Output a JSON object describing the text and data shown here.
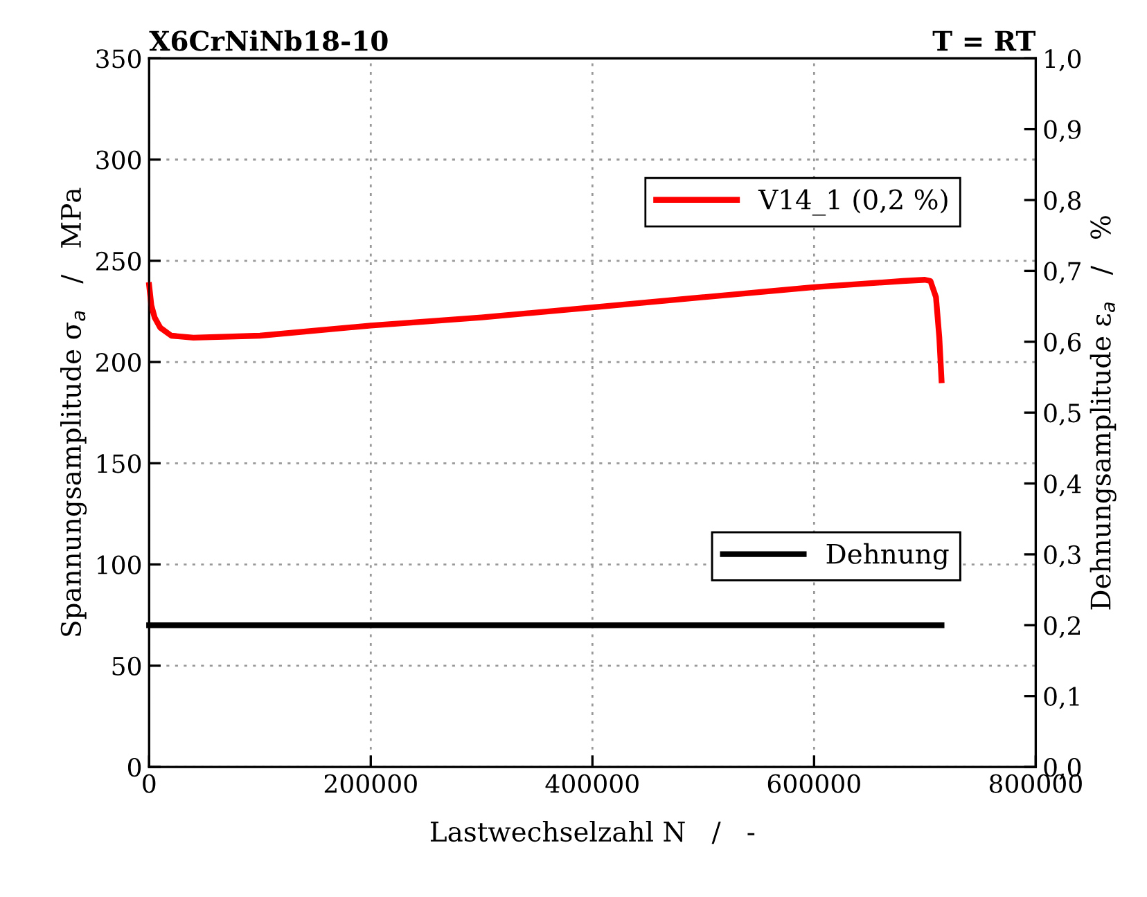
{
  "chart_data": {
    "type": "line",
    "title": "X6CrNiNb18-10",
    "annotations": [
      "T = RT"
    ],
    "xlabel": "Lastwechselzahl N   /   -",
    "ylabel": "Spannungsamplitude σ$_{a}$   /   MPa",
    "y2label": "Dehnungsamplitude ε$_{a}$   /   %",
    "xlim": [
      0,
      800000
    ],
    "xticks": [
      0,
      200000,
      400000,
      600000,
      800000
    ],
    "ylim": [
      0,
      350
    ],
    "yticks": [
      0,
      50,
      100,
      150,
      200,
      250,
      300,
      350
    ],
    "y2lim": [
      0,
      1
    ],
    "y2ticks": [
      {
        "value": 0,
        "label": "0,0"
      },
      {
        "value": 0.1,
        "label": "0,1"
      },
      {
        "value": 0.2,
        "label": "0,2"
      },
      {
        "value": 0.3,
        "label": "0,3"
      },
      {
        "value": 0.4,
        "label": "0,4"
      },
      {
        "value": 0.5,
        "label": "0,5"
      },
      {
        "value": 0.6,
        "label": "0,6"
      },
      {
        "value": 0.7,
        "label": "0,7"
      },
      {
        "value": 0.8,
        "label": "0,8"
      },
      {
        "value": 0.9,
        "label": "0,9"
      },
      {
        "value": 1,
        "label": "1,0"
      }
    ],
    "grid": true,
    "legend": "top right",
    "marker": "none",
    "line_style": "solid",
    "series": [
      {
        "name": "V14_1 (0,2 %)",
        "color": "#ff0000",
        "x": [
          0,
          2000,
          5000,
          10000,
          20000,
          40000,
          100000,
          200000,
          300000,
          400000,
          500000,
          600000,
          680000,
          700000,
          705000,
          710000,
          713000,
          715000
        ],
        "values": [
          238,
          228,
          222,
          217,
          213,
          212,
          213,
          218,
          222,
          227,
          232,
          237,
          240,
          240.6,
          240,
          232,
          212,
          191
        ]
      },
      {
        "name": "Dehnung",
        "color": "#000000",
        "axis": "y2",
        "x": [
          0,
          715000
        ],
        "values": [
          0.2,
          0.2
        ]
      }
    ]
  }
}
